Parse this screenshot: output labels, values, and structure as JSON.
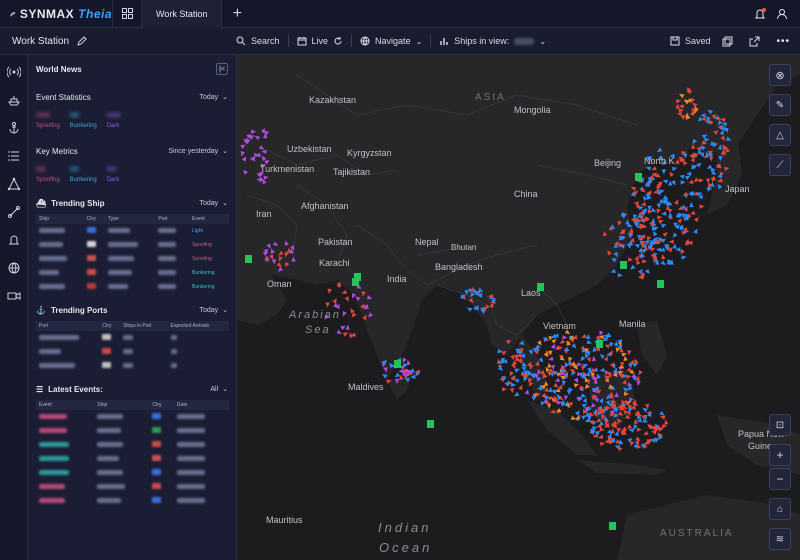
{
  "app": {
    "brand": "SYNMAX",
    "product": "Theia"
  },
  "tabs": [
    {
      "label": "Work Station"
    }
  ],
  "toolbar": {
    "title": "Work Station",
    "search_label": "Search",
    "live_label": "Live",
    "navigate_label": "Navigate",
    "ships_label": "Ships in view:",
    "saved_label": "Saved"
  },
  "panel": {
    "title": "World News",
    "event_stats": {
      "title": "Event Statistics",
      "range": "Today",
      "items": [
        {
          "label": "Spoofing",
          "color": "#c94f86"
        },
        {
          "label": "Bunkering",
          "color": "#3aa7d8"
        },
        {
          "label": "Dark",
          "color": "#8d5fe0"
        }
      ]
    },
    "key_metrics": {
      "title": "Key Metrics",
      "range": "Since yesterday",
      "items": [
        {
          "label": "Spoofing",
          "color": "#c94f86"
        },
        {
          "label": "Bunkering",
          "color": "#3aa7d8"
        },
        {
          "label": "Dark",
          "color": "#8d5fe0"
        }
      ]
    },
    "trending_ship": {
      "title": "Trending Ship",
      "range": "Today",
      "columns": [
        "Ship",
        "Ctry",
        "Type",
        "Port",
        "Event"
      ],
      "events": [
        {
          "label": "Light",
          "color": "#4aa3ff"
        },
        {
          "label": "Spoofing",
          "color": "#e0528a"
        },
        {
          "label": "Spoofing",
          "color": "#e0528a"
        },
        {
          "label": "Bunkering",
          "color": "#35c3c6"
        },
        {
          "label": "Bunkering",
          "color": "#35c3c6"
        }
      ]
    },
    "trending_ports": {
      "title": "Trending Ports",
      "range": "Today",
      "columns": [
        "Port",
        "Ctry",
        "Ships in Port",
        "Expected Arrivals"
      ]
    },
    "latest_events": {
      "title": "Latest Events:",
      "filter": "All",
      "columns": [
        "Event",
        "Ship",
        "Ctry",
        "Date"
      ]
    }
  },
  "map": {
    "labels": {
      "kazakhstan": "Kazakhstan",
      "asia": "ASIA",
      "mongolia": "Mongolia",
      "uzbekistan": "Uzbekistan",
      "kyrgyzstan": "Kyrgyzstan",
      "turkmenistan": "Turkmenistan",
      "tajikistan": "Tajikistan",
      "beijing": "Beijing",
      "north_korea": "North K",
      "japan": "Japan",
      "china": "China",
      "iran": "Iran",
      "afghanistan": "Afghanistan",
      "pakistan": "Pakistan",
      "nepal": "Nepal",
      "bhutan": "Bhutan",
      "karachi": "Karachi",
      "india": "India",
      "bangladesh": "Bangladesh",
      "oman": "Oman",
      "laos": "Laos",
      "vietnam": "Vietnam",
      "manila": "Manila",
      "arabian_sea_1": "Arabian",
      "arabian_sea_2": "Sea",
      "maldives": "Maldives",
      "papua": "Papua New",
      "guinea": "Guine",
      "mauritius": "Mauritius",
      "indian": "Indian",
      "ocean": "Ocean",
      "australia": "AUSTRALIA"
    },
    "colors": {
      "ship_blue": "#2d8cff",
      "ship_red": "#e0463c",
      "ship_purple": "#b04be0",
      "ship_green": "#25c45a",
      "ship_orange": "#f08a24"
    }
  }
}
